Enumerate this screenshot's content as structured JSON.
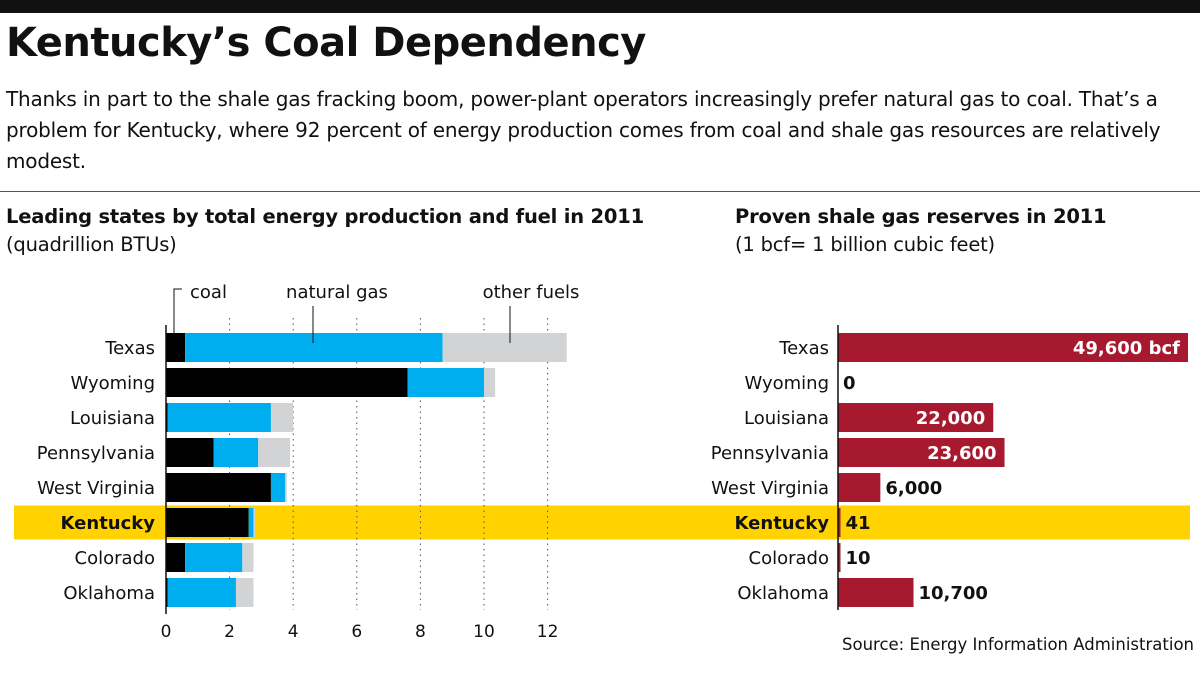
{
  "header": {
    "title": "Kentucky’s Coal Dependency",
    "subtitle": "Thanks in part to the shale gas fracking boom, power-plant operators increasingly prefer natural gas to coal. That’s a problem for Kentucky, where 92 percent of energy production comes from coal and shale gas resources are relatively modest."
  },
  "left_panel": {
    "title_bold": "Leading states by total energy production and fuel in 2011",
    "title_normal": "(quadrillion BTUs)"
  },
  "right_panel": {
    "title_bold": "Proven shale gas reserves in 2011",
    "title_normal": "(1 bcf= 1 billion cubic feet)"
  },
  "source": "Source: Energy Information Administration",
  "chart_data": [
    {
      "type": "bar",
      "orientation": "horizontal",
      "stacked": true,
      "title": "Leading states by total energy production and fuel in 2011 (quadrillion BTUs)",
      "categories": [
        "Texas",
        "Wyoming",
        "Louisiana",
        "Pennsylvania",
        "West Virginia",
        "Kentucky",
        "Colorado",
        "Oklahoma"
      ],
      "highlight": "Kentucky",
      "series": [
        {
          "name": "coal",
          "color": "#000000",
          "values": [
            0.6,
            7.6,
            0.05,
            1.5,
            3.3,
            2.6,
            0.6,
            0.05
          ]
        },
        {
          "name": "natural gas",
          "color": "#00AEEF",
          "values": [
            8.1,
            2.4,
            3.25,
            1.4,
            0.45,
            0.15,
            1.8,
            2.15
          ]
        },
        {
          "name": "other fuels",
          "color": "#D1D3D4",
          "values": [
            3.9,
            0.35,
            0.7,
            1.0,
            0.05,
            0.05,
            0.35,
            0.55
          ]
        }
      ],
      "xlim": [
        0,
        12.6
      ],
      "xticks": [
        0,
        2,
        4,
        6,
        8,
        10,
        12
      ],
      "grid": "dotted vertical"
    },
    {
      "type": "bar",
      "orientation": "horizontal",
      "title": "Proven shale gas reserves in 2011 (1 bcf= 1 billion cubic feet)",
      "categories": [
        "Texas",
        "Wyoming",
        "Louisiana",
        "Pennsylvania",
        "West Virginia",
        "Kentucky",
        "Colorado",
        "Oklahoma"
      ],
      "highlight": "Kentucky",
      "values": [
        49600,
        0,
        22000,
        23600,
        6000,
        41,
        10,
        10700
      ],
      "labels": [
        "49,600 bcf",
        "0",
        "22,000",
        "23,600",
        "6,000",
        "41",
        "10",
        "10,700"
      ],
      "color": "#A6192E",
      "xlim": [
        0,
        49600
      ]
    }
  ]
}
